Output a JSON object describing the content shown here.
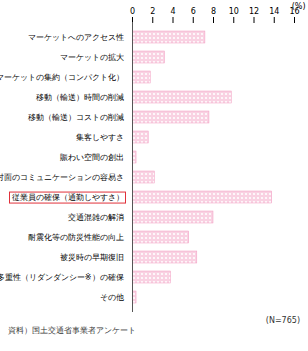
{
  "chart_data": {
    "type": "bar",
    "orientation": "horizontal",
    "categories": [
      "マーケットへのアクセス性",
      "マーケットの拡大",
      "マーケットの集約（コンパクト化）",
      "移動（輸送）時間の削減",
      "移動（輸送）コストの削減",
      "集客しやすさ",
      "賑わい空間の創出",
      "対面のコミュニケーションの容易さ",
      "従業員の確保（通勤しやすさ）",
      "交通混雑の解消",
      "耐震化等の防災性能の向上",
      "被災時の早期復旧",
      "多重性（リダンダンシー※）の確保",
      "その他"
    ],
    "values": [
      7.2,
      3.2,
      1.8,
      9.8,
      7.6,
      1.6,
      0.4,
      2.2,
      13.8,
      8.0,
      5.6,
      6.4,
      3.8,
      0.4
    ],
    "color": "#f29ac0",
    "x_label": "(%)",
    "xlim": [
      0,
      16
    ],
    "xticks": [
      0,
      2,
      4,
      6,
      8,
      10,
      12,
      14,
      16
    ],
    "grid": false,
    "annotations": [
      "(N=765)"
    ],
    "source": "資料）国土交通省事業者アンケート"
  }
}
